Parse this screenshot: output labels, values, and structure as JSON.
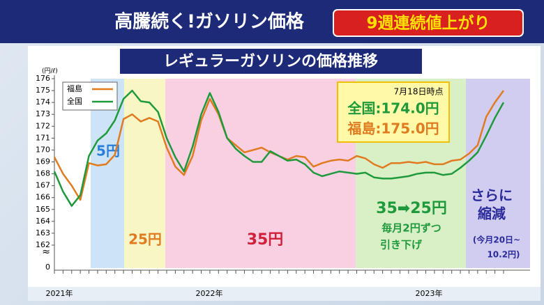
{
  "chart_data": {
    "type": "line",
    "header": "高騰続く!ガソリン価格",
    "badge": "9週連続値上がり",
    "title": "レギュラーガソリンの価格推移",
    "y_unit": "(円/ℓ)",
    "axis_break_value": 0,
    "years": [
      "2021年",
      "2022年",
      "2023年"
    ],
    "callout": {
      "date": "7月18日時点",
      "national": "全国:174.0円",
      "fukushima": "福島:175.0円"
    },
    "bands": [
      "5円",
      "25円",
      "35円",
      "35➡25円",
      "毎月2円ずつ",
      "引き下げ",
      "さらに",
      "縮減",
      "(今月20日~",
      "10.2円)"
    ],
    "categories": [
      null,
      null,
      null,
      null,
      null,
      null,
      null,
      null,
      null,
      null,
      null,
      null,
      null,
      null,
      null,
      null,
      null,
      null,
      null,
      null,
      null,
      null,
      null,
      null,
      null,
      null,
      null,
      null,
      null,
      null,
      null,
      null,
      null,
      null,
      null,
      null,
      null,
      null,
      null,
      null,
      null,
      null,
      null,
      null,
      null,
      null,
      null,
      null,
      null,
      null,
      null,
      null,
      null
    ],
    "series": [
      {
        "name": "福島",
        "color": "#e07b20",
        "values": [
          169.4,
          168.0,
          167.0,
          165.8,
          168.9,
          168.7,
          168.8,
          169.6,
          172.6,
          173.0,
          172.4,
          172.7,
          172.4,
          170.2,
          168.6,
          167.9,
          169.5,
          172.5,
          174.3,
          173.0,
          171.0,
          170.4,
          169.8,
          170.0,
          170.2,
          169.8,
          169.5,
          169.2,
          169.5,
          169.4,
          168.6,
          168.9,
          169.1,
          169.2,
          169.1,
          169.5,
          169.3,
          168.8,
          168.5,
          168.9,
          168.9,
          169.0,
          168.9,
          169.0,
          168.8,
          168.8,
          169.1,
          169.2,
          169.7,
          170.4,
          172.8,
          174.0,
          175.0
        ]
      },
      {
        "name": "全国",
        "color": "#1e9a3c",
        "values": [
          168.2,
          166.5,
          165.3,
          166.2,
          169.5,
          170.8,
          171.4,
          172.5,
          174.3,
          175.0,
          174.1,
          174.0,
          173.2,
          171.0,
          169.4,
          168.2,
          170.3,
          173.0,
          174.8,
          173.2,
          171.0,
          170.1,
          169.5,
          169.0,
          169.0,
          169.9,
          169.5,
          169.1,
          169.2,
          168.8,
          168.1,
          167.8,
          168.0,
          168.2,
          168.1,
          168.0,
          168.1,
          167.7,
          167.6,
          167.6,
          167.7,
          167.8,
          168.0,
          168.1,
          168.1,
          167.9,
          168.0,
          168.5,
          169.1,
          169.8,
          171.2,
          172.7,
          174.0
        ]
      }
    ],
    "ylim": [
      162,
      176
    ],
    "yticks": [
      162,
      163,
      164,
      165,
      166,
      167,
      168,
      169,
      170,
      171,
      172,
      173,
      174,
      175,
      176
    ],
    "grid": false
  }
}
